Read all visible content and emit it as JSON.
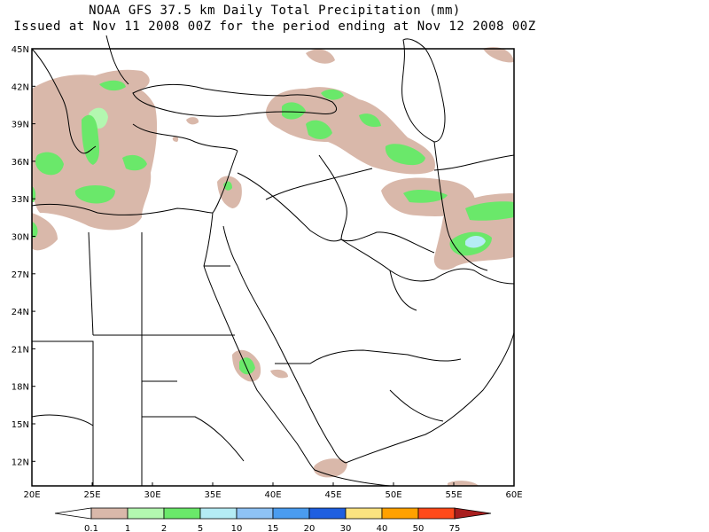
{
  "title": "NOAA GFS 37.5 km Daily Total Precipitation (mm)",
  "subtitle": "Issued at Nov 11 2008 00Z for the period ending at Nov 12 2008 00Z",
  "lat_labels": [
    "45N",
    "42N",
    "39N",
    "36N",
    "33N",
    "30N",
    "27N",
    "24N",
    "21N",
    "18N",
    "15N",
    "12N"
  ],
  "lon_labels": [
    "20E",
    "25E",
    "30E",
    "35E",
    "40E",
    "45E",
    "50E",
    "55E",
    "60E"
  ],
  "legend": {
    "labels": [
      "0.1",
      "1",
      "2",
      "5",
      "10",
      "15",
      "20",
      "30",
      "40",
      "50",
      "75"
    ],
    "colors": [
      "#ffffff",
      "#d9b8aa",
      "#b3f7b0",
      "#6ae86a",
      "#b5ecf5",
      "#8ec2f5",
      "#4a9cf0",
      "#1e5fe0",
      "#fbe380",
      "#ffa100",
      "#ff4a1a",
      "#a81e1e"
    ]
  },
  "colors": {
    "light": "#d9b8aa",
    "green_light": "#b3f7b0",
    "green": "#6ae86a",
    "cyan": "#b5ecf5"
  }
}
